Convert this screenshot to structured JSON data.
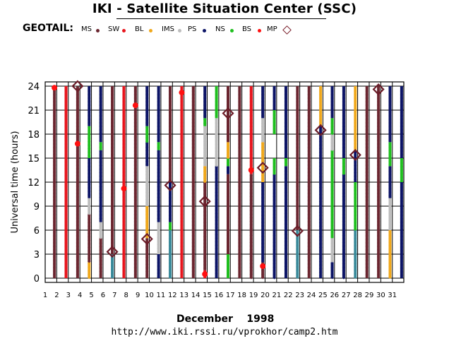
{
  "header": {
    "title": "IKI - Satellite Situation Center (SSC)"
  },
  "legend": {
    "lead": "GEOTAIL:",
    "items": [
      {
        "code": "MS",
        "color": "#6b2630"
      },
      {
        "code": "SW",
        "color": "#e8141c"
      },
      {
        "code": "BL",
        "color": "#f0a81c"
      },
      {
        "code": "IMS",
        "color": "#bdbdbd"
      },
      {
        "code": "PS",
        "color": "#0c1466"
      },
      {
        "code": "NS",
        "color": "#1fbf1f"
      },
      {
        "code": "BS",
        "color": "#ff1010"
      },
      {
        "code": "MP",
        "color": "#7a1f2b",
        "marker": "diamond"
      }
    ]
  },
  "footer": {
    "month": "December    1998",
    "url": "http://www.iki.rssi.ru/vprokhor/camp2.htm"
  },
  "chart_data": {
    "type": "timeline",
    "ylabel": "Universal time (hours)",
    "xlim": [
      1,
      31
    ],
    "ylim": [
      0,
      24
    ],
    "y_ticks": [
      0,
      3,
      6,
      9,
      12,
      15,
      18,
      21,
      24
    ],
    "x_ticks": [
      1,
      2,
      3,
      4,
      5,
      6,
      7,
      8,
      9,
      10,
      11,
      12,
      13,
      14,
      15,
      16,
      17,
      18,
      19,
      20,
      21,
      22,
      23,
      24,
      25,
      26,
      27,
      28,
      29,
      30,
      31
    ],
    "grid": true,
    "series_colors": {
      "MS": "#6b2630",
      "SW": "#e8141c",
      "BL": "#f0a81c",
      "IMS": "#bdbdbd",
      "PS": "#0c1466",
      "NS": "#1fbf1f",
      "LOBE": "#3a8a9a"
    },
    "columns": [
      {
        "x": 1.8,
        "segments": [
          [
            "MS",
            0,
            24
          ]
        ]
      },
      {
        "x": 2.8,
        "segments": [
          [
            "SW",
            0,
            24
          ]
        ]
      },
      {
        "x": 3.8,
        "segments": [
          [
            "MS",
            0,
            24
          ]
        ]
      },
      {
        "x": 4.8,
        "segments": [
          [
            "BL",
            0,
            2
          ],
          [
            "MS",
            2,
            8
          ],
          [
            "IMS",
            8,
            10
          ],
          [
            "PS",
            10,
            15
          ],
          [
            "NS",
            15,
            19
          ],
          [
            "PS",
            19,
            24
          ]
        ]
      },
      {
        "x": 5.8,
        "segments": [
          [
            "MS",
            0,
            5
          ],
          [
            "IMS",
            5,
            7
          ],
          [
            "PS",
            7,
            16
          ],
          [
            "NS",
            16,
            17
          ],
          [
            "PS",
            17,
            24
          ]
        ]
      },
      {
        "x": 6.8,
        "segments": [
          [
            "LOBE",
            0,
            3
          ],
          [
            "MS",
            3,
            24
          ]
        ]
      },
      {
        "x": 7.8,
        "segments": [
          [
            "SW",
            0,
            24
          ]
        ]
      },
      {
        "x": 8.8,
        "segments": [
          [
            "MS",
            0,
            24
          ]
        ]
      },
      {
        "x": 9.8,
        "segments": [
          [
            "MS",
            0,
            5
          ],
          [
            "BL",
            5,
            9
          ],
          [
            "IMS",
            9,
            14
          ],
          [
            "PS",
            14,
            17
          ],
          [
            "NS",
            17,
            19
          ],
          [
            "PS",
            19,
            24
          ]
        ]
      },
      {
        "x": 10.8,
        "segments": [
          [
            "PS",
            0,
            3
          ],
          [
            "IMS",
            3,
            7
          ],
          [
            "PS",
            7,
            16
          ],
          [
            "NS",
            16,
            17
          ],
          [
            "PS",
            17,
            24
          ]
        ]
      },
      {
        "x": 11.8,
        "segments": [
          [
            "LOBE",
            0,
            6
          ],
          [
            "NS",
            6,
            7
          ],
          [
            "PS",
            7,
            12
          ],
          [
            "MS",
            12,
            24
          ]
        ]
      },
      {
        "x": 12.8,
        "segments": [
          [
            "SW",
            0,
            24
          ]
        ]
      },
      {
        "x": 13.8,
        "segments": [
          [
            "MS",
            0,
            24
          ]
        ]
      },
      {
        "x": 14.8,
        "segments": [
          [
            "SW",
            0,
            1
          ],
          [
            "MS",
            1,
            12
          ],
          [
            "BL",
            12,
            14
          ],
          [
            "IMS",
            14,
            19
          ],
          [
            "NS",
            19,
            20
          ],
          [
            "PS",
            20,
            24
          ]
        ]
      },
      {
        "x": 15.8,
        "segments": [
          [
            "PS",
            0,
            14
          ],
          [
            "IMS",
            14,
            20
          ],
          [
            "NS",
            20,
            24
          ]
        ]
      },
      {
        "x": 16.8,
        "segments": [
          [
            "NS",
            0,
            3
          ],
          [
            "MS",
            3,
            13
          ],
          [
            "PS",
            13,
            14
          ],
          [
            "NS",
            14,
            15
          ],
          [
            "BL",
            15,
            17
          ],
          [
            "MS",
            17,
            24
          ]
        ]
      },
      {
        "x": 17.8,
        "segments": [
          [
            "MS",
            0,
            24
          ]
        ]
      },
      {
        "x": 18.8,
        "segments": [
          [
            "MS",
            0,
            13
          ],
          [
            "SW",
            13,
            24
          ]
        ]
      },
      {
        "x": 19.8,
        "segments": [
          [
            "MS",
            0,
            2
          ],
          [
            "PS",
            2,
            12
          ],
          [
            "BL",
            12,
            17
          ],
          [
            "IMS",
            17,
            20
          ],
          [
            "PS",
            20,
            24
          ]
        ]
      },
      {
        "x": 20.8,
        "segments": [
          [
            "PS",
            0,
            13
          ],
          [
            "NS",
            13,
            15
          ],
          [
            "NS",
            18,
            21
          ],
          [
            "PS",
            21,
            24
          ]
        ]
      },
      {
        "x": 21.8,
        "segments": [
          [
            "PS",
            0,
            14
          ],
          [
            "NS",
            14,
            15
          ],
          [
            "PS",
            15,
            24
          ]
        ]
      },
      {
        "x": 22.8,
        "segments": [
          [
            "LOBE",
            0,
            6
          ],
          [
            "MS",
            6,
            24
          ]
        ]
      },
      {
        "x": 23.8,
        "segments": [
          [
            "MS",
            0,
            24
          ]
        ]
      },
      {
        "x": 24.8,
        "segments": [
          [
            "PS",
            0,
            19
          ],
          [
            "BL",
            19,
            24
          ]
        ]
      },
      {
        "x": 25.8,
        "segments": [
          [
            "PS",
            0,
            2
          ],
          [
            "IMS",
            2,
            5
          ],
          [
            "NS",
            5,
            16
          ],
          [
            "IMS",
            16,
            18
          ],
          [
            "NS",
            18,
            20
          ],
          [
            "PS",
            20,
            24
          ]
        ]
      },
      {
        "x": 26.8,
        "segments": [
          [
            "PS",
            0,
            13
          ],
          [
            "NS",
            13,
            15
          ],
          [
            "PS",
            15,
            24
          ]
        ]
      },
      {
        "x": 27.8,
        "segments": [
          [
            "LOBE",
            0,
            6
          ],
          [
            "NS",
            6,
            12
          ],
          [
            "PS",
            12,
            16
          ],
          [
            "BL",
            16,
            24
          ]
        ]
      },
      {
        "x": 28.8,
        "segments": [
          [
            "MS",
            0,
            24
          ]
        ]
      },
      {
        "x": 29.8,
        "segments": [
          [
            "MS",
            0,
            24
          ]
        ]
      },
      {
        "x": 30.8,
        "segments": [
          [
            "BL",
            0,
            6
          ],
          [
            "IMS",
            6,
            10
          ],
          [
            "PS",
            10,
            14
          ],
          [
            "NS",
            14,
            17
          ],
          [
            "PS",
            17,
            24
          ]
        ]
      },
      {
        "x": 31.8,
        "segments": [
          [
            "PS",
            0,
            12
          ],
          [
            "NS",
            12,
            15
          ],
          [
            "PS",
            15,
            24
          ]
        ]
      }
    ],
    "bow_shock": [
      [
        1.8,
        23.8
      ],
      [
        3.8,
        16.8
      ],
      [
        7.8,
        11.2
      ],
      [
        8.8,
        21.6
      ],
      [
        12.8,
        23.2
      ],
      [
        14.8,
        0.5
      ],
      [
        18.8,
        13.5
      ],
      [
        19.8,
        1.5
      ]
    ],
    "magnetopause": [
      [
        3.8,
        24.0
      ],
      [
        6.8,
        3.3
      ],
      [
        9.8,
        4.9
      ],
      [
        11.8,
        11.6
      ],
      [
        14.8,
        9.6
      ],
      [
        16.8,
        20.6
      ],
      [
        19.8,
        13.8
      ],
      [
        22.8,
        5.9
      ],
      [
        24.8,
        18.5
      ],
      [
        27.8,
        15.4
      ],
      [
        29.8,
        23.6
      ]
    ]
  }
}
